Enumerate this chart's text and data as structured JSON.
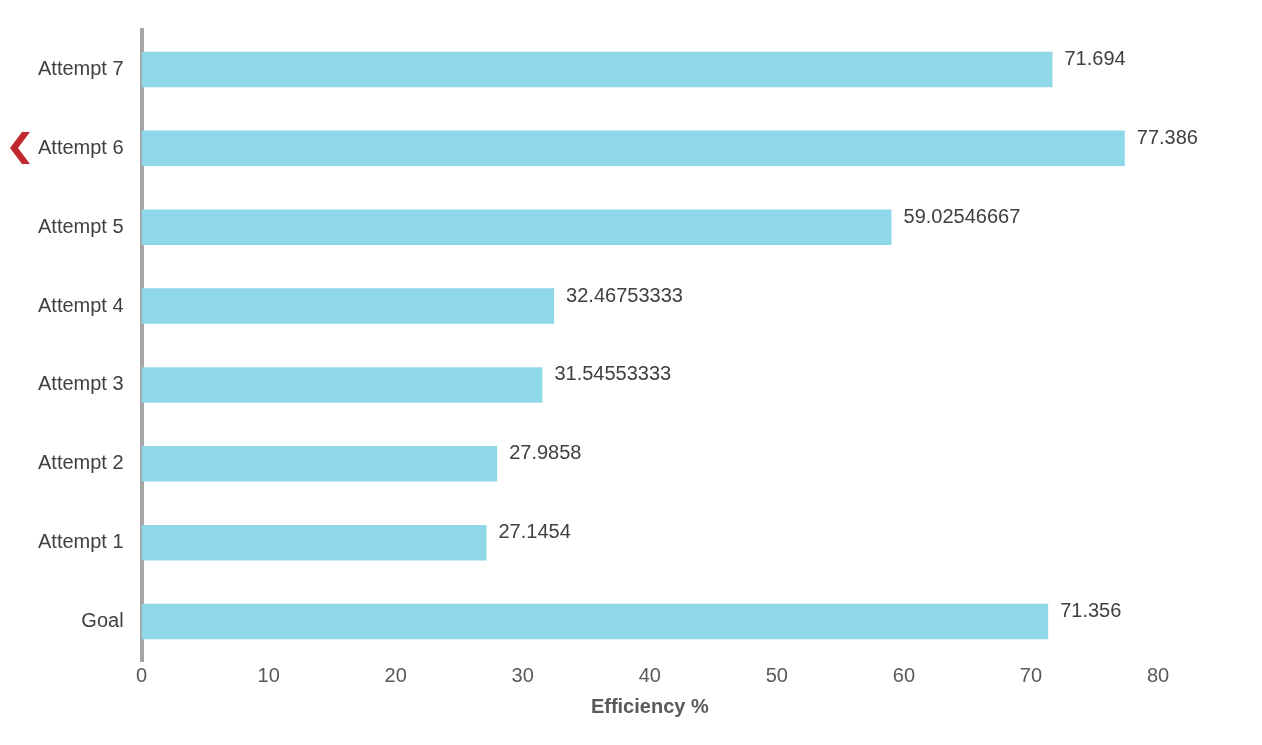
{
  "chart_data": {
    "type": "bar",
    "orientation": "horizontal",
    "xlabel": "Efficiency %",
    "categories": [
      "Attempt 7",
      "Attempt 6",
      "Attempt 5",
      "Attempt 4",
      "Attempt 3",
      "Attempt 2",
      "Attempt 1",
      "Goal"
    ],
    "values": [
      71.694,
      77.386,
      59.02546667,
      32.46753333,
      31.54553333,
      27.9858,
      27.1454,
      71.356
    ],
    "color": "#8fd8ea",
    "xlim": [
      0,
      80
    ],
    "xticks": [
      0,
      10,
      20,
      30,
      40,
      50,
      60,
      70,
      80
    ],
    "data_labels": true
  }
}
